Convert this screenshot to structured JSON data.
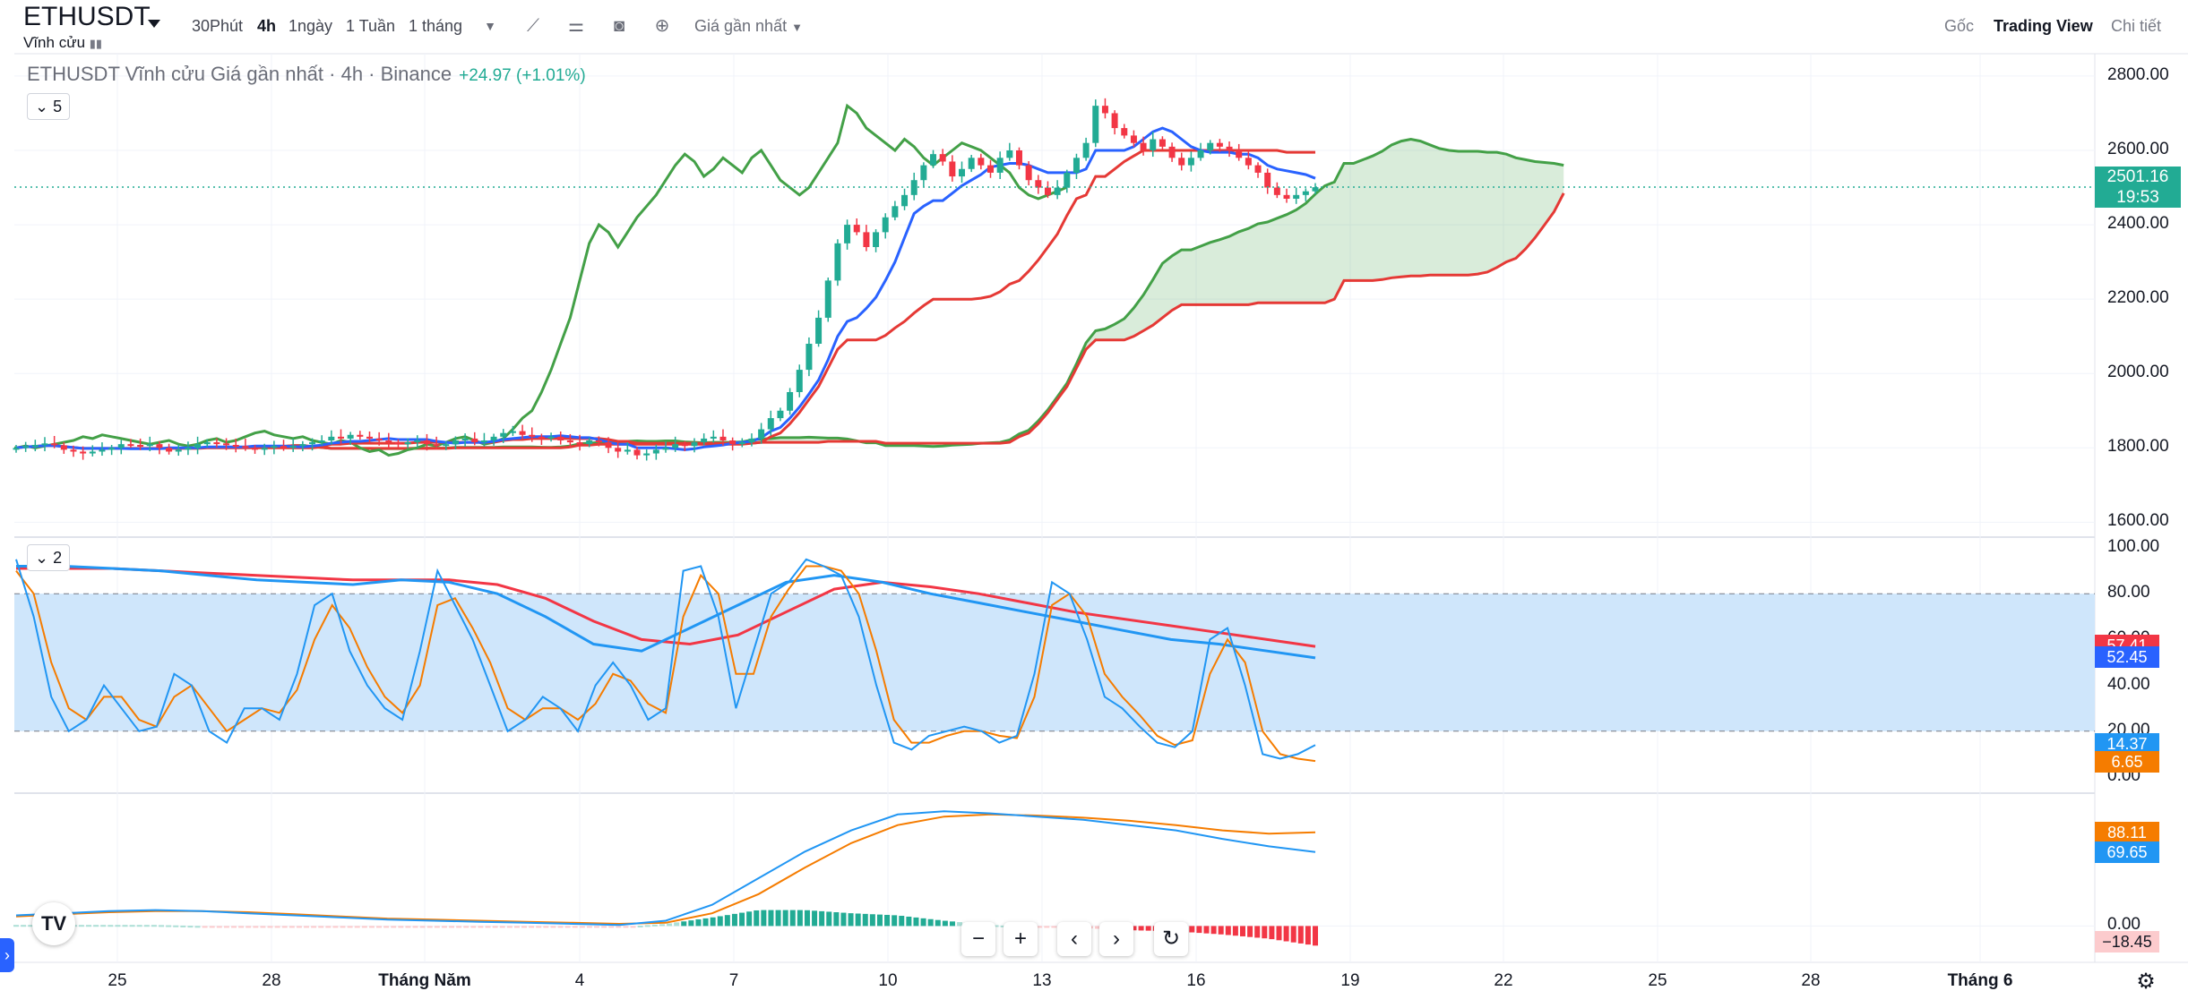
{
  "header": {
    "symbol": "ETHUSDT",
    "subtitle": "Vĩnh cửu",
    "timeframes": [
      "30Phút",
      "4h",
      "1ngày",
      "1 Tuần",
      "1 tháng"
    ],
    "active_timeframe": "4h",
    "price_source": "Giá gần nhất",
    "right_links": [
      "Gốc",
      "Trading View",
      "Chi tiết"
    ]
  },
  "legend": {
    "title": "ETHUSDT Vĩnh cửu Giá gần nhất · 4h · Binance",
    "change": "+24.97 (+1.01%)",
    "collapse_main": "5",
    "collapse_stoch": "2"
  },
  "colors": {
    "up": "#22ab94",
    "down": "#f23645",
    "ichimoku_green": "#43a047",
    "ichimoku_red": "#e53935",
    "tenkan_blue": "#2962ff",
    "stoch_k": "#2196f3",
    "stoch_d": "#f57c00",
    "band_fill": "#cfe6fb"
  },
  "price_axis": {
    "ticks": [
      "2800.00",
      "2600.00",
      "2400.00",
      "2200.00",
      "2000.00",
      "1800.00",
      "1600.00"
    ],
    "current_price": "2501.16",
    "countdown": "19:53"
  },
  "stoch_axis": {
    "ticks": [
      "100.00",
      "80.00",
      "60.00",
      "40.00",
      "20.00",
      "0.00"
    ],
    "tags": [
      {
        "value": "57.41",
        "color": "#f23645"
      },
      {
        "value": "52.45",
        "color": "#2962ff"
      },
      {
        "value": "14.37",
        "color": "#2196f3"
      },
      {
        "value": "6.65",
        "color": "#f57c00"
      }
    ]
  },
  "macd_axis": {
    "zero": "0.00",
    "tags": [
      {
        "value": "88.11",
        "color": "#f57c00"
      },
      {
        "value": "69.65",
        "color": "#2196f3"
      },
      {
        "value": "−18.45",
        "color": "#fccbcd",
        "text": "#131722"
      }
    ]
  },
  "x_axis": [
    {
      "label": "25",
      "bold": false
    },
    {
      "label": "28",
      "bold": false
    },
    {
      "label": "Tháng Năm",
      "bold": true
    },
    {
      "label": "4",
      "bold": false
    },
    {
      "label": "7",
      "bold": false
    },
    {
      "label": "10",
      "bold": false
    },
    {
      "label": "13",
      "bold": false
    },
    {
      "label": "16",
      "bold": false
    },
    {
      "label": "19",
      "bold": false
    },
    {
      "label": "22",
      "bold": false
    },
    {
      "label": "25",
      "bold": false
    },
    {
      "label": "28",
      "bold": false
    },
    {
      "label": "Tháng 6",
      "bold": true
    }
  ],
  "nav_buttons": [
    "−",
    "+",
    "‹",
    "›",
    "↻"
  ],
  "chart_data": {
    "type": "candlestick",
    "x_start": "2025-04-22",
    "period_hours": 4,
    "price_range": [
      1560,
      2860
    ],
    "close_series": [
      1800,
      1805,
      1808,
      1812,
      1807,
      1795,
      1790,
      1785,
      1790,
      1795,
      1800,
      1810,
      1808,
      1805,
      1810,
      1800,
      1790,
      1795,
      1800,
      1810,
      1815,
      1812,
      1808,
      1805,
      1800,
      1795,
      1800,
      1805,
      1800,
      1805,
      1810,
      1815,
      1820,
      1830,
      1825,
      1835,
      1830,
      1825,
      1820,
      1815,
      1810,
      1815,
      1820,
      1810,
      1805,
      1810,
      1820,
      1825,
      1815,
      1820,
      1830,
      1840,
      1845,
      1835,
      1830,
      1825,
      1830,
      1820,
      1815,
      1810,
      1820,
      1815,
      1800,
      1790,
      1795,
      1780,
      1785,
      1795,
      1800,
      1810,
      1805,
      1815,
      1825,
      1830,
      1820,
      1810,
      1815,
      1825,
      1850,
      1880,
      1900,
      1950,
      2010,
      2080,
      2150,
      2250,
      2350,
      2400,
      2380,
      2340,
      2380,
      2420,
      2450,
      2480,
      2520,
      2560,
      2590,
      2570,
      2530,
      2550,
      2580,
      2560,
      2540,
      2580,
      2600,
      2560,
      2520,
      2500,
      2480,
      2500,
      2540,
      2580,
      2620,
      2720,
      2700,
      2660,
      2640,
      2620,
      2600,
      2630,
      2610,
      2580,
      2560,
      2580,
      2600,
      2620,
      2610,
      2600,
      2580,
      2560,
      2540,
      2500,
      2480,
      2470,
      2480,
      2490,
      2501
    ],
    "stoch_k": [
      95,
      70,
      35,
      20,
      25,
      40,
      30,
      20,
      22,
      45,
      40,
      20,
      15,
      30,
      30,
      25,
      45,
      75,
      80,
      55,
      40,
      30,
      25,
      55,
      90,
      75,
      60,
      40,
      20,
      25,
      35,
      30,
      20,
      40,
      50,
      40,
      25,
      30,
      90,
      92,
      70,
      30,
      55,
      80,
      85,
      95,
      92,
      88,
      70,
      40,
      15,
      12,
      18,
      20,
      22,
      20,
      15,
      18,
      45,
      85,
      80,
      60,
      35,
      30,
      22,
      15,
      13,
      20,
      60,
      65,
      40,
      10,
      8,
      10,
      14
    ],
    "stoch_d": [
      90,
      80,
      50,
      30,
      25,
      35,
      35,
      25,
      22,
      35,
      40,
      30,
      20,
      25,
      30,
      28,
      38,
      60,
      75,
      65,
      48,
      35,
      28,
      40,
      75,
      78,
      65,
      50,
      30,
      25,
      30,
      30,
      25,
      32,
      45,
      42,
      32,
      28,
      70,
      88,
      80,
      45,
      45,
      70,
      82,
      92,
      92,
      90,
      80,
      55,
      25,
      15,
      15,
      18,
      20,
      20,
      18,
      17,
      35,
      75,
      80,
      70,
      45,
      35,
      27,
      18,
      14,
      16,
      45,
      60,
      50,
      20,
      10,
      8,
      7
    ],
    "stoch_rsi_k": [
      92,
      92,
      91,
      90,
      88,
      86,
      85,
      84,
      86,
      85,
      80,
      70,
      58,
      55,
      65,
      75,
      85,
      88,
      85,
      80,
      76,
      72,
      68,
      64,
      60,
      58,
      55,
      52
    ],
    "stoch_rsi_d": [
      91,
      91,
      91,
      90,
      89,
      88,
      87,
      86,
      86,
      86,
      84,
      78,
      68,
      60,
      58,
      62,
      72,
      82,
      85,
      83,
      80,
      76,
      72,
      69,
      66,
      63,
      60,
      57
    ],
    "macd_line": [
      10,
      12,
      14,
      15,
      14,
      12,
      10,
      8,
      6,
      5,
      4,
      3,
      2,
      1,
      5,
      20,
      45,
      70,
      90,
      105,
      108,
      106,
      103,
      100,
      95,
      90,
      82,
      75,
      69.65
    ],
    "macd_signal": [
      9,
      11,
      13,
      14,
      14,
      13,
      11,
      9,
      7,
      6,
      5,
      4,
      3,
      2,
      3,
      12,
      30,
      55,
      78,
      95,
      103,
      105,
      104,
      102,
      99,
      95,
      90,
      87,
      88.11
    ],
    "macd_hist_last": -18.45
  }
}
